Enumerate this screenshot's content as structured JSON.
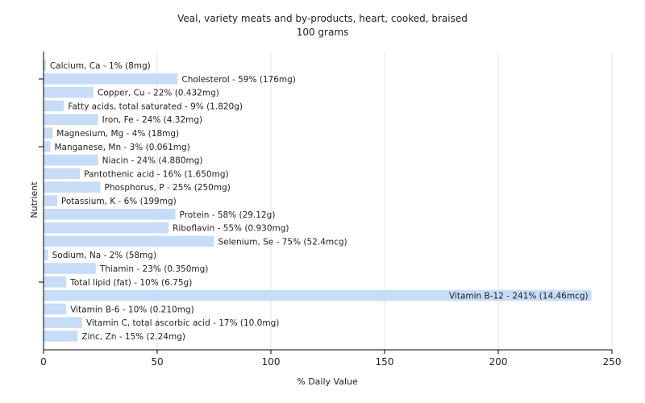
{
  "chart_data": {
    "type": "bar",
    "orientation": "horizontal",
    "title": "Veal, variety meats and by-products, heart, cooked, braised",
    "subtitle": "100 grams",
    "xlabel": "% Daily Value",
    "ylabel": "Nutrient",
    "xlim": [
      0,
      250
    ],
    "xticks": [
      0,
      50,
      100,
      150,
      200,
      250
    ],
    "grid": true,
    "bar_color": "#c6dcf7",
    "categories": [
      "Calcium, Ca",
      "Cholesterol",
      "Copper, Cu",
      "Fatty acids, total saturated",
      "Iron, Fe",
      "Magnesium, Mg",
      "Manganese, Mn",
      "Niacin",
      "Pantothenic acid",
      "Phosphorus, P",
      "Potassium, K",
      "Protein",
      "Riboflavin",
      "Selenium, Se",
      "Sodium, Na",
      "Thiamin",
      "Total lipid (fat)",
      "Vitamin B-12",
      "Vitamin B-6",
      "Vitamin C, total ascorbic acid",
      "Zinc, Zn"
    ],
    "values": [
      1,
      59,
      22,
      9,
      24,
      4,
      3,
      24,
      16,
      25,
      6,
      58,
      55,
      75,
      2,
      23,
      10,
      241,
      10,
      17,
      15
    ],
    "labels": [
      "Calcium, Ca - 1% (8mg)",
      "Cholesterol - 59% (176mg)",
      "Copper, Cu - 22% (0.432mg)",
      "Fatty acids, total saturated - 9% (1.820g)",
      "Iron, Fe - 24% (4.32mg)",
      "Magnesium, Mg - 4% (18mg)",
      "Manganese, Mn - 3% (0.061mg)",
      "Niacin - 24% (4.880mg)",
      "Pantothenic acid - 16% (1.650mg)",
      "Phosphorus, P - 25% (250mg)",
      "Potassium, K - 6% (199mg)",
      "Protein - 58% (29.12g)",
      "Riboflavin - 55% (0.930mg)",
      "Selenium, Se - 75% (52.4mcg)",
      "Sodium, Na - 2% (58mg)",
      "Thiamin - 23% (0.350mg)",
      "Total lipid (fat) - 10% (6.75g)",
      "Vitamin B-12 - 241% (14.46mcg)",
      "Vitamin B-6 - 10% (0.210mg)",
      "Vitamin C, total ascorbic acid - 17% (10.0mg)",
      "Zinc, Zn - 15% (2.24mg)"
    ]
  }
}
